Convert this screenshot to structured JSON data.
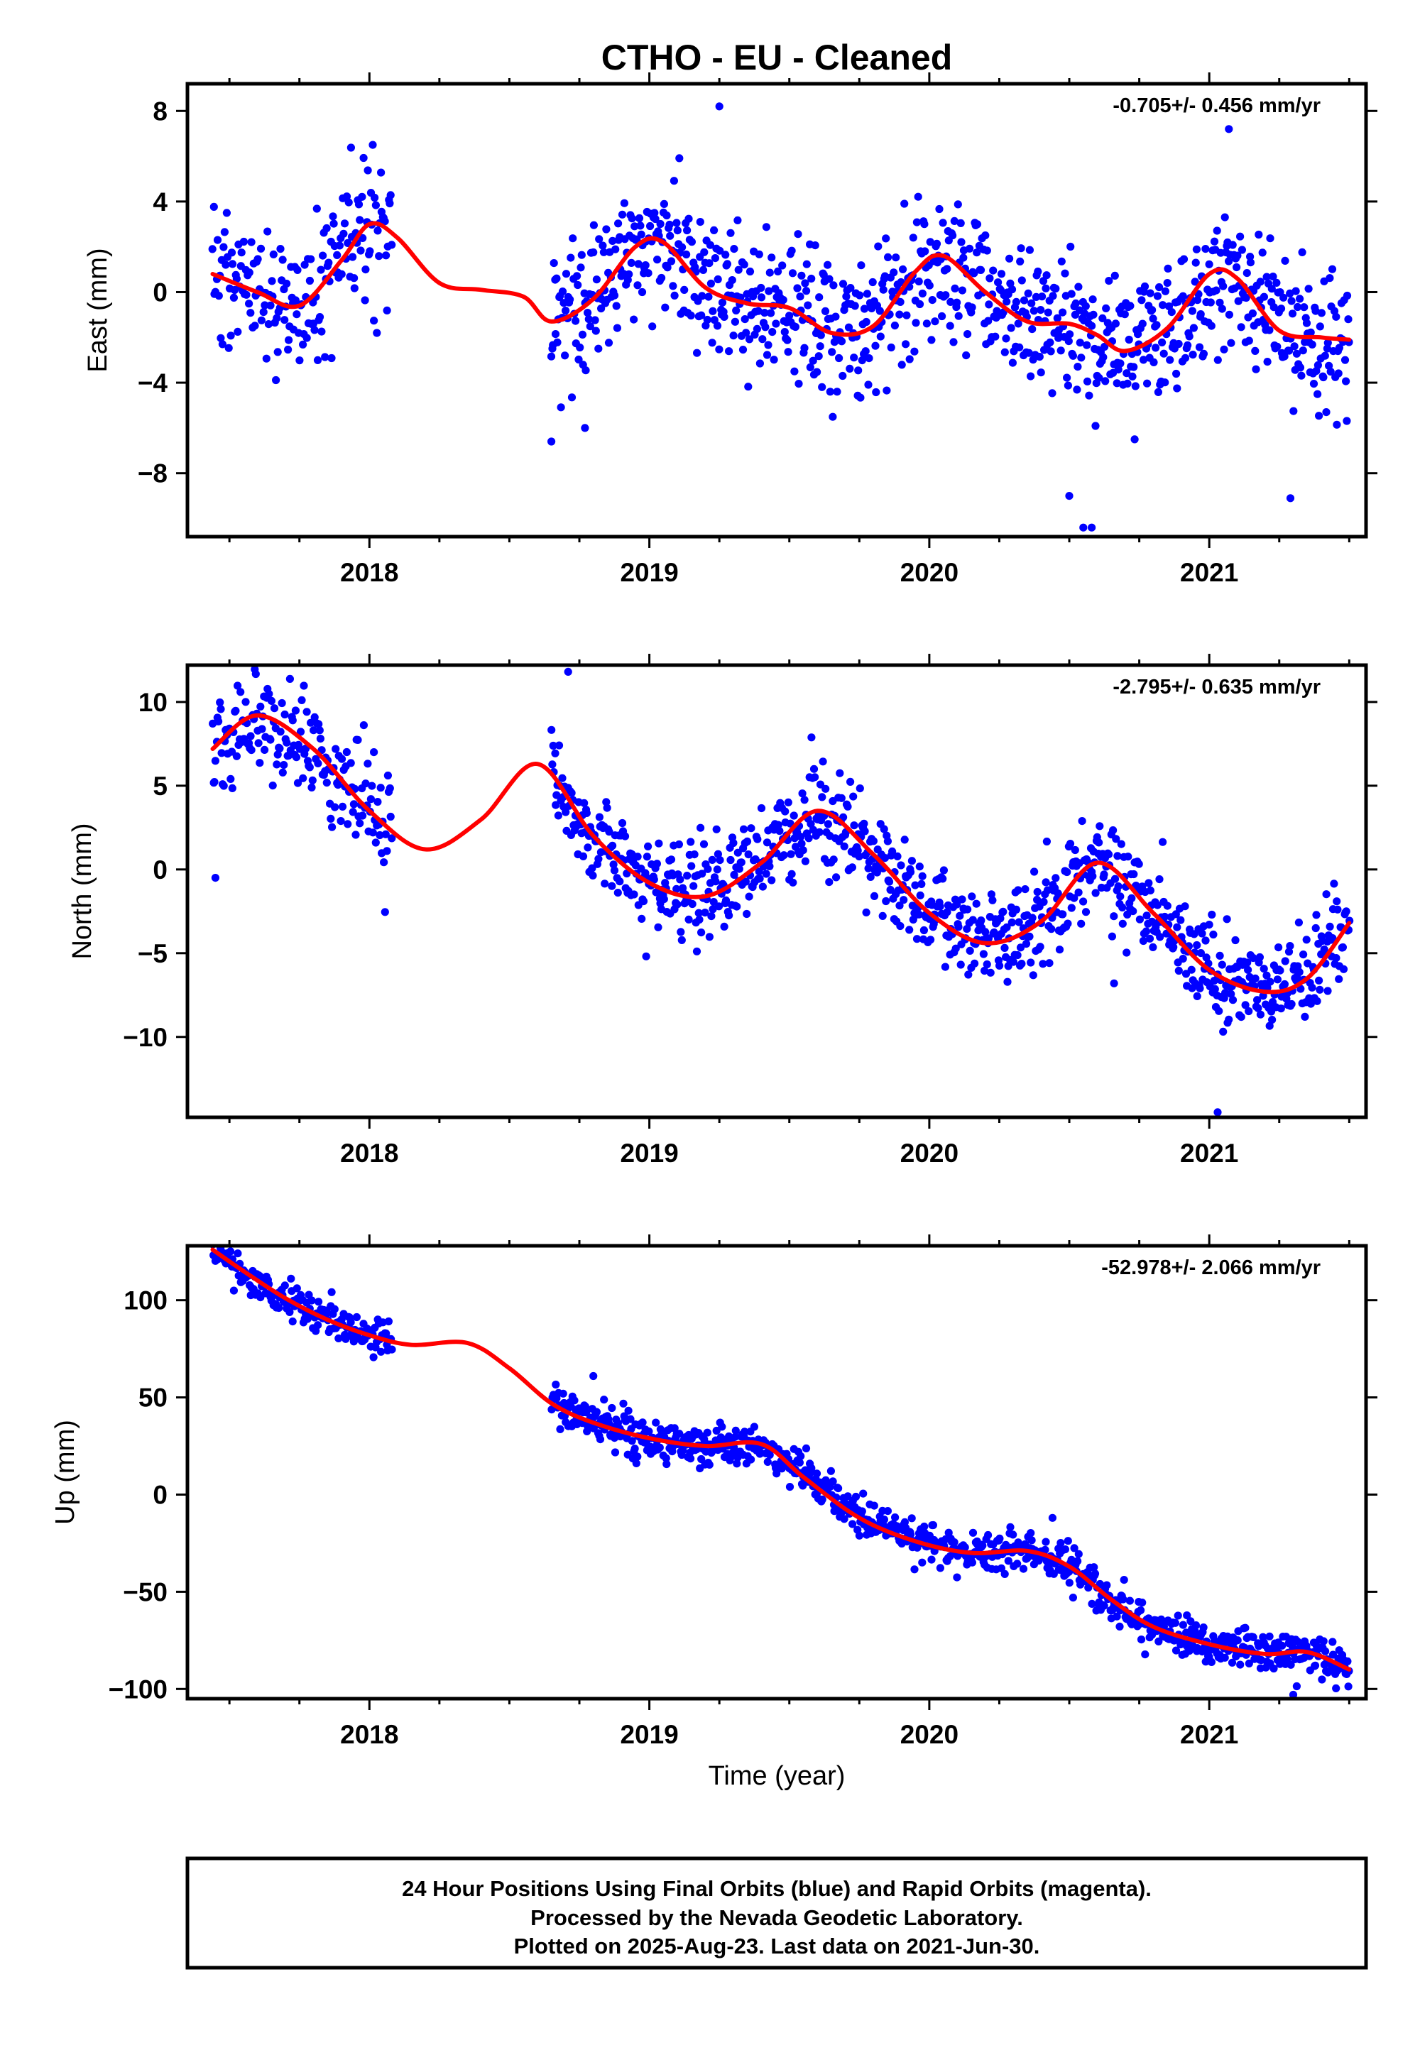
{
  "page": {
    "title": "CTHO  - EU - Cleaned",
    "xlabel": "Time (year)",
    "footer": [
      "24 Hour Positions Using Final Orbits (blue) and Rapid Orbits (magenta).",
      "Processed by the Nevada Geodetic Laboratory.",
      "Plotted on 2025-Aug-23. Last data on 2021-Jun-30."
    ]
  },
  "colors": {
    "points": "#0000ff",
    "model": "#ff0000",
    "axis": "#000000"
  },
  "chart_data": [
    {
      "type": "scatter",
      "ylabel": "East (mm)",
      "rate": "-0.705+/- 0.456 mm/yr",
      "xlim": [
        2017.35,
        2021.56
      ],
      "ylim": [
        -10.8,
        9.2
      ],
      "x_ticks": [
        2018,
        2019,
        2020,
        2021
      ],
      "y_ticks": [
        -8,
        -4,
        0,
        4,
        8
      ],
      "y_tick_labels": [
        "−8",
        "−4",
        "0",
        "4",
        "8"
      ],
      "grid": false,
      "gaps": [
        [
          2018.08,
          2018.65
        ]
      ],
      "series": [
        {
          "type": "scatter",
          "segments": [
            {
              "x0": 2017.44,
              "x1": 2018.08,
              "n": 180
            },
            {
              "x0": 2018.65,
              "x1": 2021.5,
              "n": 900
            }
          ],
          "spread": 1.6,
          "outliers": [
            [
              2019.25,
              8.2
            ],
            [
              2021.07,
              7.2
            ],
            [
              2020.55,
              -10.4
            ],
            [
              2020.58,
              -10.4
            ],
            [
              2020.5,
              -9.0
            ],
            [
              2021.29,
              -9.1
            ],
            [
              2018.65,
              -6.6
            ],
            [
              2018.77,
              -6.0
            ]
          ]
        },
        {
          "type": "line",
          "x": [
            2017.44,
            2017.6,
            2017.75,
            2017.9,
            2018.0,
            2018.1,
            2018.25,
            2018.4,
            2018.55,
            2018.65,
            2018.8,
            2018.95,
            2019.05,
            2019.2,
            2019.35,
            2019.5,
            2019.65,
            2019.8,
            2019.95,
            2020.05,
            2020.2,
            2020.35,
            2020.5,
            2020.6,
            2020.7,
            2020.85,
            2021.0,
            2021.1,
            2021.25,
            2021.4,
            2021.5
          ],
          "values": [
            0.8,
            0.0,
            -0.6,
            1.4,
            3.0,
            2.4,
            0.4,
            0.1,
            -0.2,
            -1.3,
            -0.3,
            2.0,
            2.2,
            0.2,
            -0.5,
            -0.7,
            -1.8,
            -1.5,
            0.9,
            1.6,
            0.0,
            -1.3,
            -1.4,
            -1.9,
            -2.6,
            -1.6,
            0.8,
            0.6,
            -1.7,
            -2.0,
            -2.1
          ]
        }
      ]
    },
    {
      "type": "scatter",
      "ylabel": "North (mm)",
      "rate": "-2.795+/- 0.635 mm/yr",
      "xlim": [
        2017.35,
        2021.56
      ],
      "ylim": [
        -14.8,
        12.2
      ],
      "x_ticks": [
        2018,
        2019,
        2020,
        2021
      ],
      "y_ticks": [
        -10,
        -5,
        0,
        5,
        10
      ],
      "y_tick_labels": [
        "−10",
        "−5",
        "0",
        "5",
        "10"
      ],
      "grid": false,
      "gaps": [
        [
          2018.08,
          2018.65
        ]
      ],
      "series": [
        {
          "type": "scatter",
          "segments": [
            {
              "x0": 2017.44,
              "x1": 2018.08,
              "n": 180
            },
            {
              "x0": 2018.65,
              "x1": 2021.5,
              "n": 900
            }
          ],
          "spread": 1.5,
          "outliers": [
            [
              2018.71,
              11.8
            ],
            [
              2021.03,
              -14.5
            ],
            [
              2017.45,
              -0.5
            ],
            [
              2020.66,
              -6.8
            ]
          ]
        },
        {
          "type": "line",
          "x": [
            2017.44,
            2017.6,
            2017.8,
            2018.0,
            2018.2,
            2018.4,
            2018.6,
            2018.8,
            2019.0,
            2019.2,
            2019.4,
            2019.6,
            2019.8,
            2020.0,
            2020.2,
            2020.4,
            2020.6,
            2020.8,
            2021.0,
            2021.2,
            2021.35,
            2021.5
          ],
          "values": [
            7.2,
            9.2,
            7.2,
            3.5,
            1.2,
            3.0,
            6.3,
            2.0,
            -0.8,
            -1.6,
            0.4,
            3.5,
            0.9,
            -2.6,
            -4.4,
            -3.1,
            0.4,
            -2.6,
            -6.0,
            -7.3,
            -6.5,
            -3.2
          ]
        }
      ]
    },
    {
      "type": "scatter",
      "ylabel": "Up (mm)",
      "rate": "-52.978+/- 2.066 mm/yr",
      "xlim": [
        2017.35,
        2021.56
      ],
      "ylim": [
        -105,
        128
      ],
      "x_ticks": [
        2018,
        2019,
        2020,
        2021
      ],
      "y_ticks": [
        -100,
        -50,
        0,
        50,
        100
      ],
      "y_tick_labels": [
        "−100",
        "−50",
        "0",
        "50",
        "100"
      ],
      "grid": false,
      "gaps": [
        [
          2018.08,
          2018.65
        ]
      ],
      "series": [
        {
          "type": "scatter",
          "segments": [
            {
              "x0": 2017.44,
              "x1": 2018.08,
              "n": 180
            },
            {
              "x0": 2018.65,
              "x1": 2021.5,
              "n": 900
            }
          ],
          "spread": 5.0,
          "outliers": [
            [
              2018.8,
              61
            ],
            [
              2021.3,
              -103
            ],
            [
              2020.44,
              -12
            ]
          ]
        },
        {
          "type": "line",
          "x": [
            2017.44,
            2017.55,
            2017.7,
            2017.85,
            2018.0,
            2018.15,
            2018.35,
            2018.5,
            2018.65,
            2018.8,
            2019.0,
            2019.2,
            2019.4,
            2019.55,
            2019.75,
            2019.95,
            2020.15,
            2020.35,
            2020.5,
            2020.65,
            2020.8,
            2021.0,
            2021.2,
            2021.35,
            2021.5
          ],
          "values": [
            126,
            115,
            101,
            90,
            82,
            77,
            78,
            65,
            47,
            37,
            29,
            25,
            26,
            9,
            -12,
            -24,
            -30,
            -29,
            -37,
            -54,
            -68,
            -77,
            -82,
            -81,
            -90
          ]
        }
      ]
    }
  ]
}
